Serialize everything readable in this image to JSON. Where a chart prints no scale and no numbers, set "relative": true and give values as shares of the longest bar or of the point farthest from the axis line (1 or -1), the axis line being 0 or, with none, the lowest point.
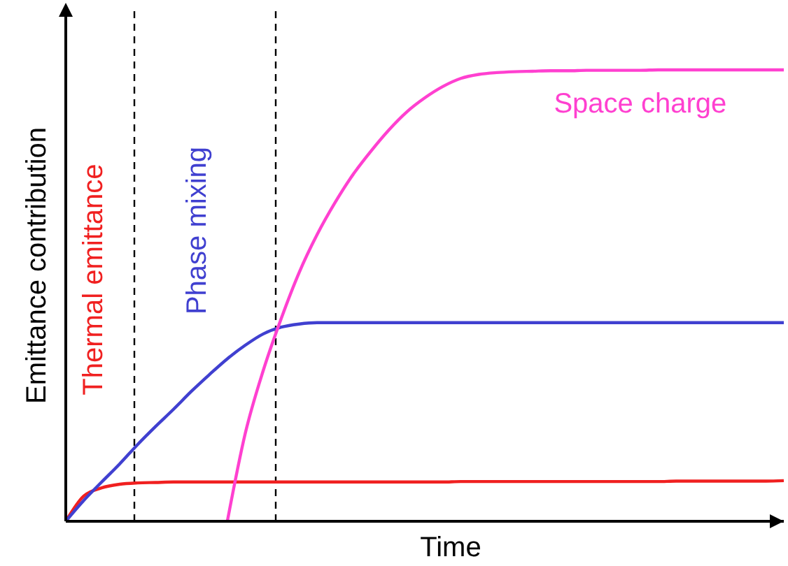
{
  "chart_data": {
    "type": "line",
    "relative": true,
    "xlabel": "Time",
    "ylabel": "Emittance contribution",
    "categories": [
      null,
      null,
      null,
      null,
      null,
      null,
      null,
      null,
      null,
      null,
      null,
      null,
      null,
      null,
      null,
      null,
      null,
      null,
      null,
      null,
      null,
      null,
      null,
      null,
      null,
      null,
      null,
      null,
      null,
      null,
      null,
      null,
      null,
      null,
      null,
      null,
      null,
      null,
      null,
      null,
      null
    ],
    "series": [
      {
        "name": "Thermal emittance",
        "color": "#f02020",
        "values": [
          0,
          0.056,
          0.074,
          0.082,
          0.085,
          0.086,
          0.087,
          0.087,
          0.087,
          0.087,
          0.087,
          0.087,
          0.087,
          0.087,
          0.087,
          0.087,
          0.087,
          0.087,
          0.087,
          0.087,
          0.087,
          0.087,
          0.088,
          0.088,
          0.088,
          0.088,
          0.088,
          0.088,
          0.088,
          0.088,
          0.088,
          0.088,
          0.088,
          0.088,
          0.089,
          0.089,
          0.089,
          0.089,
          0.089,
          0.089,
          0.09
        ]
      },
      {
        "name": "Phase mixing",
        "color": "#4040d0",
        "values": [
          0,
          0.046,
          0.087,
          0.127,
          0.17,
          0.21,
          0.248,
          0.288,
          0.325,
          0.36,
          0.39,
          0.415,
          0.43,
          0.437,
          0.44,
          0.44,
          0.44,
          0.44,
          0.44,
          0.44,
          0.44,
          0.44,
          0.44,
          0.44,
          0.44,
          0.44,
          0.44,
          0.44,
          0.44,
          0.44,
          0.44,
          0.44,
          0.44,
          0.44,
          0.44,
          0.44,
          0.44,
          0.44,
          0.44,
          0.44,
          0.44
        ]
      },
      {
        "name": "Space charge",
        "color": "#ff40d0",
        "values": [
          null,
          null,
          null,
          null,
          null,
          null,
          null,
          null,
          null,
          0,
          0.195,
          0.334,
          0.449,
          0.551,
          0.635,
          0.706,
          0.768,
          0.82,
          0.867,
          0.907,
          0.938,
          0.963,
          0.981,
          0.99,
          0.994,
          0.996,
          0.997,
          0.998,
          0.998,
          0.999,
          0.999,
          0.999,
          0.999,
          1,
          1,
          1,
          1,
          1,
          1,
          1,
          1
        ]
      }
    ]
  }
}
